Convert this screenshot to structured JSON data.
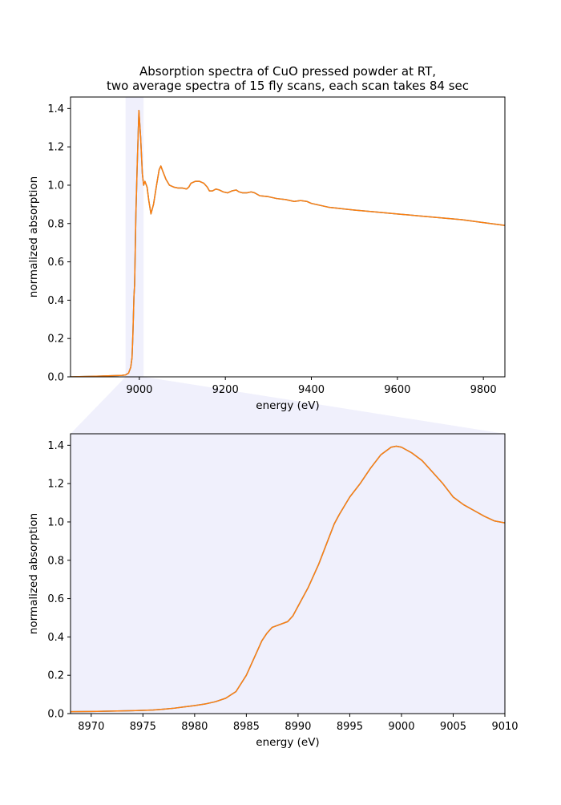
{
  "title_line1": "Absorption spectra of CuO pressed powder at RT,",
  "title_line2": "two average spectra of 15 fly scans, each scan takes 84 sec",
  "colors": {
    "series_1": "#1f77b4",
    "series_2": "#ff7f0e",
    "zoom_highlight": "#e6e6fa"
  },
  "chart_data": [
    {
      "type": "line",
      "xlabel": "energy (eV)",
      "ylabel": "normalized absorption",
      "xlim": [
        8840,
        9850
      ],
      "ylim": [
        0,
        1.46
      ],
      "x_ticks": [
        9000,
        9200,
        9400,
        9600,
        9800
      ],
      "y_ticks": [
        0.0,
        0.2,
        0.4,
        0.6,
        0.8,
        1.0,
        1.2,
        1.4
      ],
      "grid": false,
      "highlight_span": [
        8968,
        9010
      ],
      "series": [
        {
          "x": [
            8840,
            8900,
            8950,
            8960,
            8968,
            8975,
            8980,
            8983,
            8985,
            8987.5,
            8989,
            8992,
            8995,
            8999,
            9003,
            9007,
            9010,
            9013,
            9018,
            9022,
            9027,
            9033,
            9040,
            9046,
            9050,
            9055,
            9062,
            9070,
            9080,
            9090,
            9100,
            9110,
            9115,
            9120,
            9130,
            9140,
            9150,
            9158,
            9163,
            9170,
            9178,
            9186,
            9195,
            9205,
            9215,
            9225,
            9232,
            9240,
            9250,
            9260,
            9268,
            9280,
            9300,
            9320,
            9340,
            9360,
            9375,
            9390,
            9400,
            9420,
            9440,
            9460,
            9480,
            9500,
            9550,
            9600,
            9650,
            9700,
            9750,
            9800,
            9850
          ],
          "y": [
            0.0,
            0.003,
            0.007,
            0.008,
            0.01,
            0.02,
            0.05,
            0.1,
            0.22,
            0.42,
            0.48,
            0.85,
            1.1,
            1.39,
            1.25,
            1.06,
            1.0,
            1.02,
            0.99,
            0.92,
            0.85,
            0.9,
            1.0,
            1.08,
            1.1,
            1.07,
            1.03,
            1.0,
            0.99,
            0.985,
            0.985,
            0.98,
            0.99,
            1.01,
            1.02,
            1.02,
            1.01,
            0.99,
            0.97,
            0.97,
            0.98,
            0.975,
            0.965,
            0.96,
            0.97,
            0.975,
            0.965,
            0.96,
            0.96,
            0.965,
            0.96,
            0.945,
            0.94,
            0.93,
            0.925,
            0.915,
            0.92,
            0.915,
            0.905,
            0.895,
            0.885,
            0.88,
            0.875,
            0.87,
            0.86,
            0.85,
            0.84,
            0.83,
            0.82,
            0.805,
            0.79
          ]
        },
        {
          "x": [
            8840,
            8900,
            8950,
            8960,
            8968,
            8975,
            8980,
            8983,
            8985,
            8987.5,
            8989,
            8992,
            8995,
            8999,
            9003,
            9007,
            9010,
            9013,
            9018,
            9022,
            9027,
            9033,
            9040,
            9046,
            9050,
            9055,
            9062,
            9070,
            9080,
            9090,
            9100,
            9110,
            9115,
            9120,
            9130,
            9140,
            9150,
            9158,
            9163,
            9170,
            9178,
            9186,
            9195,
            9205,
            9215,
            9225,
            9232,
            9240,
            9250,
            9260,
            9268,
            9280,
            9300,
            9320,
            9340,
            9360,
            9375,
            9390,
            9400,
            9420,
            9440,
            9460,
            9480,
            9500,
            9550,
            9600,
            9650,
            9700,
            9750,
            9800,
            9850
          ],
          "y": [
            0.0,
            0.003,
            0.007,
            0.008,
            0.01,
            0.02,
            0.05,
            0.1,
            0.22,
            0.42,
            0.48,
            0.85,
            1.1,
            1.39,
            1.25,
            1.06,
            1.0,
            1.02,
            0.99,
            0.92,
            0.85,
            0.9,
            1.0,
            1.08,
            1.1,
            1.07,
            1.03,
            1.0,
            0.99,
            0.985,
            0.985,
            0.98,
            0.99,
            1.01,
            1.02,
            1.02,
            1.01,
            0.99,
            0.97,
            0.97,
            0.98,
            0.975,
            0.965,
            0.96,
            0.97,
            0.975,
            0.965,
            0.96,
            0.96,
            0.965,
            0.96,
            0.945,
            0.94,
            0.93,
            0.925,
            0.915,
            0.92,
            0.915,
            0.905,
            0.895,
            0.885,
            0.88,
            0.875,
            0.87,
            0.86,
            0.85,
            0.84,
            0.83,
            0.82,
            0.805,
            0.79
          ]
        }
      ]
    },
    {
      "type": "line",
      "xlabel": "energy (eV)",
      "ylabel": "normalized absorption",
      "xlim": [
        8968,
        9010
      ],
      "ylim": [
        0,
        1.46
      ],
      "x_ticks": [
        8970,
        8975,
        8980,
        8985,
        8990,
        8995,
        9000,
        9005,
        9010
      ],
      "y_ticks": [
        0.0,
        0.2,
        0.4,
        0.6,
        0.8,
        1.0,
        1.2,
        1.4
      ],
      "grid": false,
      "background": "zoom_highlight",
      "series": [
        {
          "x": [
            8968,
            8970,
            8972,
            8974,
            8976,
            8977,
            8978,
            8979,
            8980,
            8981,
            8982,
            8983,
            8984,
            8985,
            8986,
            8986.5,
            8987,
            8987.5,
            8988,
            8989,
            8989.5,
            8990,
            8991,
            8992,
            8993,
            8993.5,
            8994,
            8995,
            8996,
            8997,
            8998,
            8999,
            8999.5,
            9000,
            9001,
            9002,
            9003,
            9004,
            9005,
            9006,
            9007,
            9008,
            9009,
            9010
          ],
          "y": [
            0.01,
            0.011,
            0.013,
            0.015,
            0.019,
            0.023,
            0.028,
            0.035,
            0.042,
            0.05,
            0.062,
            0.08,
            0.115,
            0.2,
            0.32,
            0.38,
            0.42,
            0.45,
            0.46,
            0.48,
            0.51,
            0.56,
            0.66,
            0.78,
            0.92,
            0.99,
            1.04,
            1.13,
            1.2,
            1.28,
            1.35,
            1.39,
            1.395,
            1.39,
            1.36,
            1.32,
            1.26,
            1.2,
            1.13,
            1.09,
            1.06,
            1.03,
            1.005,
            0.995
          ]
        },
        {
          "x": [
            8968,
            8970,
            8972,
            8974,
            8976,
            8977,
            8978,
            8979,
            8980,
            8981,
            8982,
            8983,
            8984,
            8985,
            8986,
            8986.5,
            8987,
            8987.5,
            8988,
            8989,
            8989.5,
            8990,
            8991,
            8992,
            8993,
            8993.5,
            8994,
            8995,
            8996,
            8997,
            8998,
            8999,
            8999.5,
            9000,
            9001,
            9002,
            9003,
            9004,
            9005,
            9006,
            9007,
            9008,
            9009,
            9010
          ],
          "y": [
            0.01,
            0.011,
            0.013,
            0.015,
            0.019,
            0.023,
            0.028,
            0.035,
            0.042,
            0.05,
            0.062,
            0.08,
            0.115,
            0.2,
            0.32,
            0.38,
            0.42,
            0.45,
            0.46,
            0.48,
            0.51,
            0.56,
            0.66,
            0.78,
            0.92,
            0.99,
            1.04,
            1.13,
            1.2,
            1.28,
            1.35,
            1.39,
            1.395,
            1.39,
            1.36,
            1.32,
            1.26,
            1.2,
            1.13,
            1.09,
            1.06,
            1.03,
            1.005,
            0.995
          ]
        }
      ]
    }
  ]
}
